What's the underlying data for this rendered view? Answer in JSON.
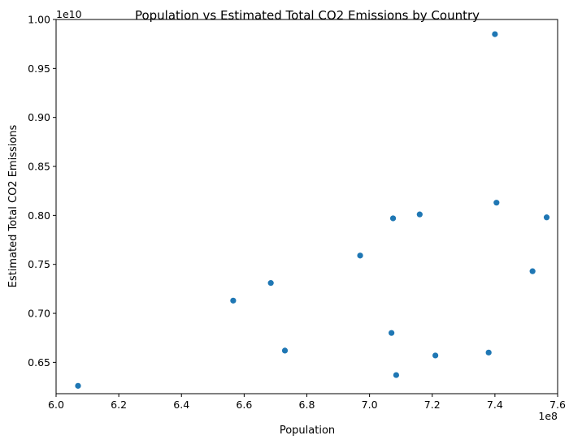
{
  "chart_data": {
    "type": "scatter",
    "title": "Population vs Estimated Total CO2 Emissions by Country",
    "xlabel": "Population",
    "ylabel": "Estimated Total CO2 Emissions",
    "x_offset_label": "1e8",
    "y_offset_label": "1e10",
    "xlim": [
      6.0,
      7.6
    ],
    "ylim": [
      6.18,
      10.0
    ],
    "x_ticks": [
      "6.0",
      "6.2",
      "6.4",
      "6.6",
      "6.8",
      "7.0",
      "7.2",
      "7.4",
      "7.6"
    ],
    "y_ticks": [
      "0.65",
      "0.70",
      "0.75",
      "0.80",
      "0.85",
      "0.90",
      "0.95",
      "1.00"
    ],
    "grid": false,
    "legend": "none",
    "marker_color": "#1f77b4",
    "points": [
      {
        "x": 6.07,
        "y": 6.26
      },
      {
        "x": 6.565,
        "y": 7.13
      },
      {
        "x": 6.685,
        "y": 7.31
      },
      {
        "x": 6.73,
        "y": 6.62
      },
      {
        "x": 6.97,
        "y": 7.59
      },
      {
        "x": 7.07,
        "y": 6.8
      },
      {
        "x": 7.075,
        "y": 7.97
      },
      {
        "x": 7.085,
        "y": 6.37
      },
      {
        "x": 7.16,
        "y": 8.01
      },
      {
        "x": 7.21,
        "y": 6.57
      },
      {
        "x": 7.38,
        "y": 6.6
      },
      {
        "x": 7.4,
        "y": 9.85
      },
      {
        "x": 7.405,
        "y": 8.13
      },
      {
        "x": 7.52,
        "y": 7.43
      },
      {
        "x": 7.565,
        "y": 7.98
      }
    ]
  }
}
